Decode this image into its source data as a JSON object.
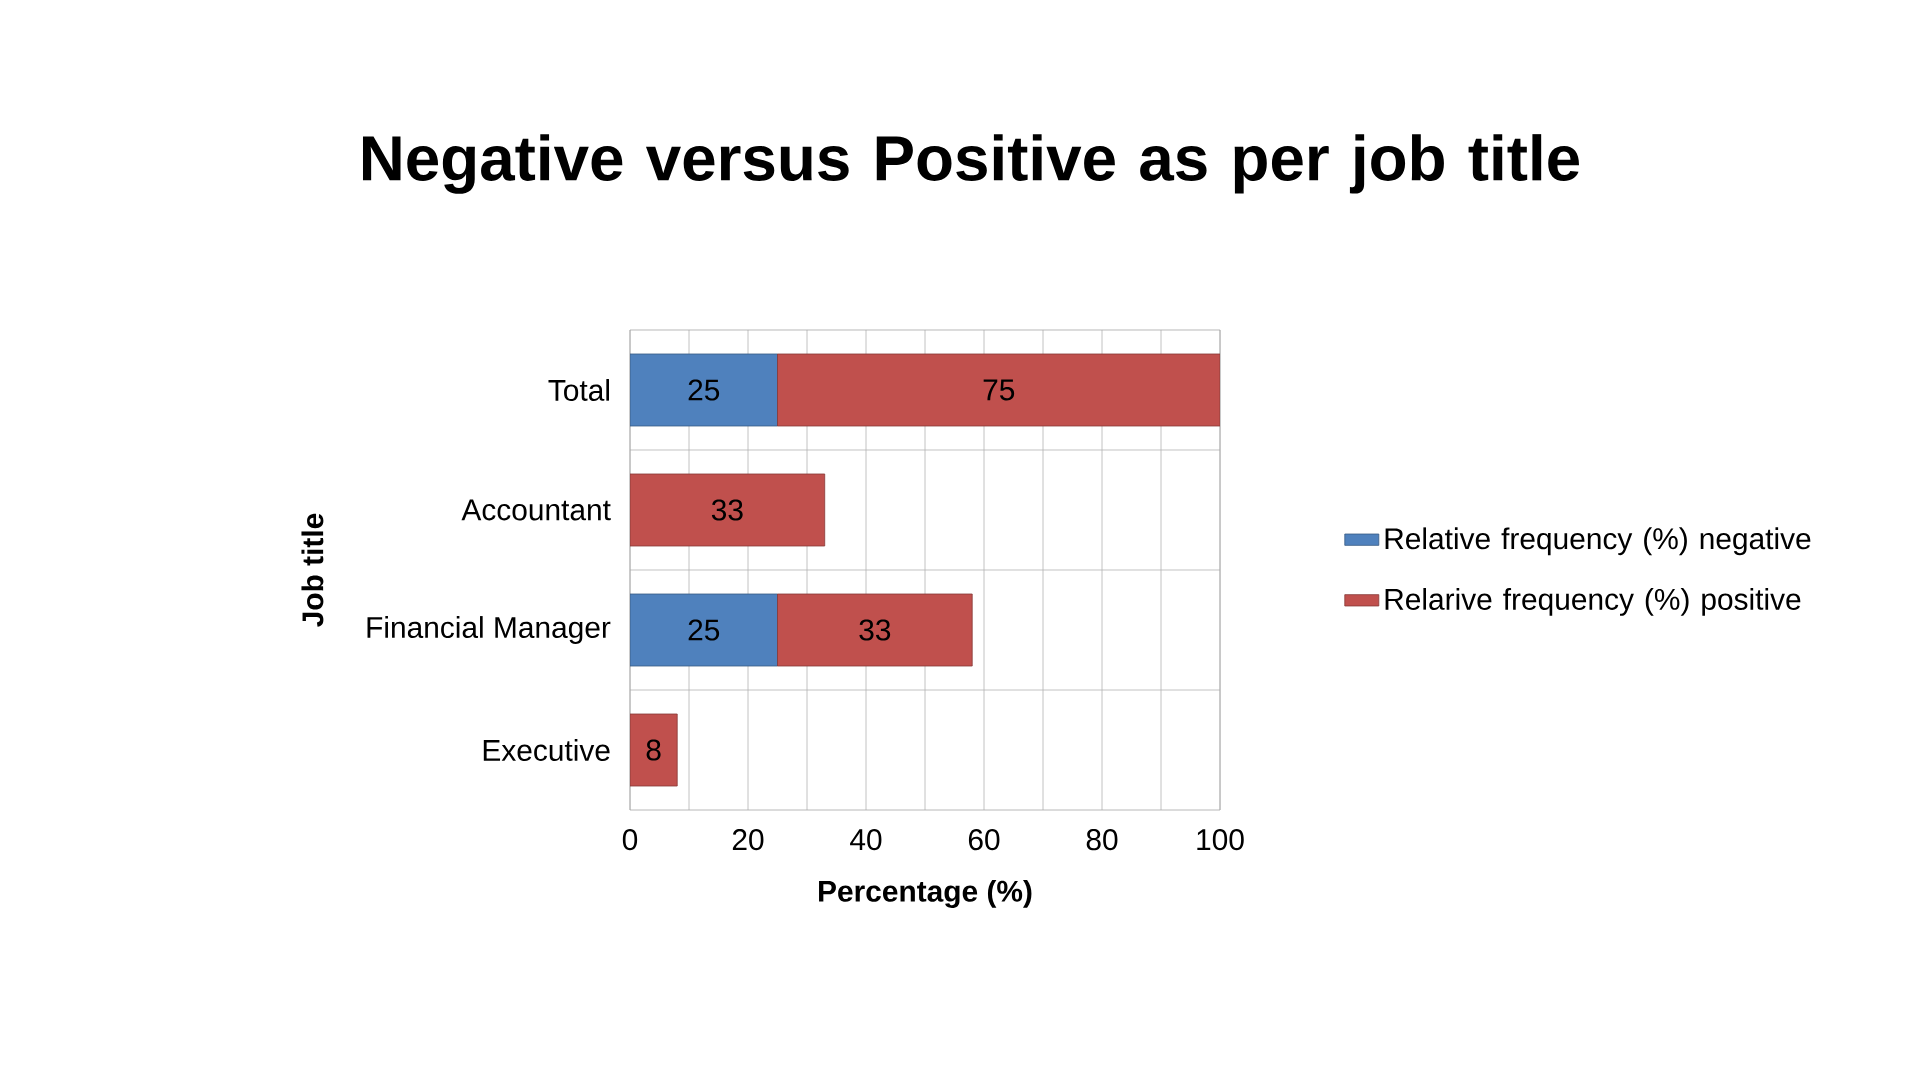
{
  "chart_data": {
    "type": "bar",
    "orientation": "horizontal",
    "stacked": true,
    "title": "Negative versus Positive as per job title",
    "xlabel": "Percentage (%)",
    "ylabel": "Job title",
    "categories": [
      "Total",
      "Accountant",
      "Financial Manager",
      "Executive"
    ],
    "series": [
      {
        "name": "Relative frequency (%) negative",
        "color": "#4f81bd",
        "values": [
          25,
          null,
          25,
          null
        ]
      },
      {
        "name": "Relarive frequency (%) positive",
        "color": "#c0504d",
        "values": [
          75,
          33,
          33,
          8
        ]
      }
    ],
    "xlim": [
      0,
      100
    ],
    "xticks": [
      0,
      {
        "value": 10,
        "label": null
      },
      20,
      {
        "value": 30,
        "label": null
      },
      40,
      {
        "value": 50,
        "label": null
      },
      60,
      {
        "value": 70,
        "label": null
      },
      80,
      {
        "value": 90,
        "label": null
      },
      100
    ],
    "data_labels": true,
    "grid": true,
    "legend": "right"
  }
}
